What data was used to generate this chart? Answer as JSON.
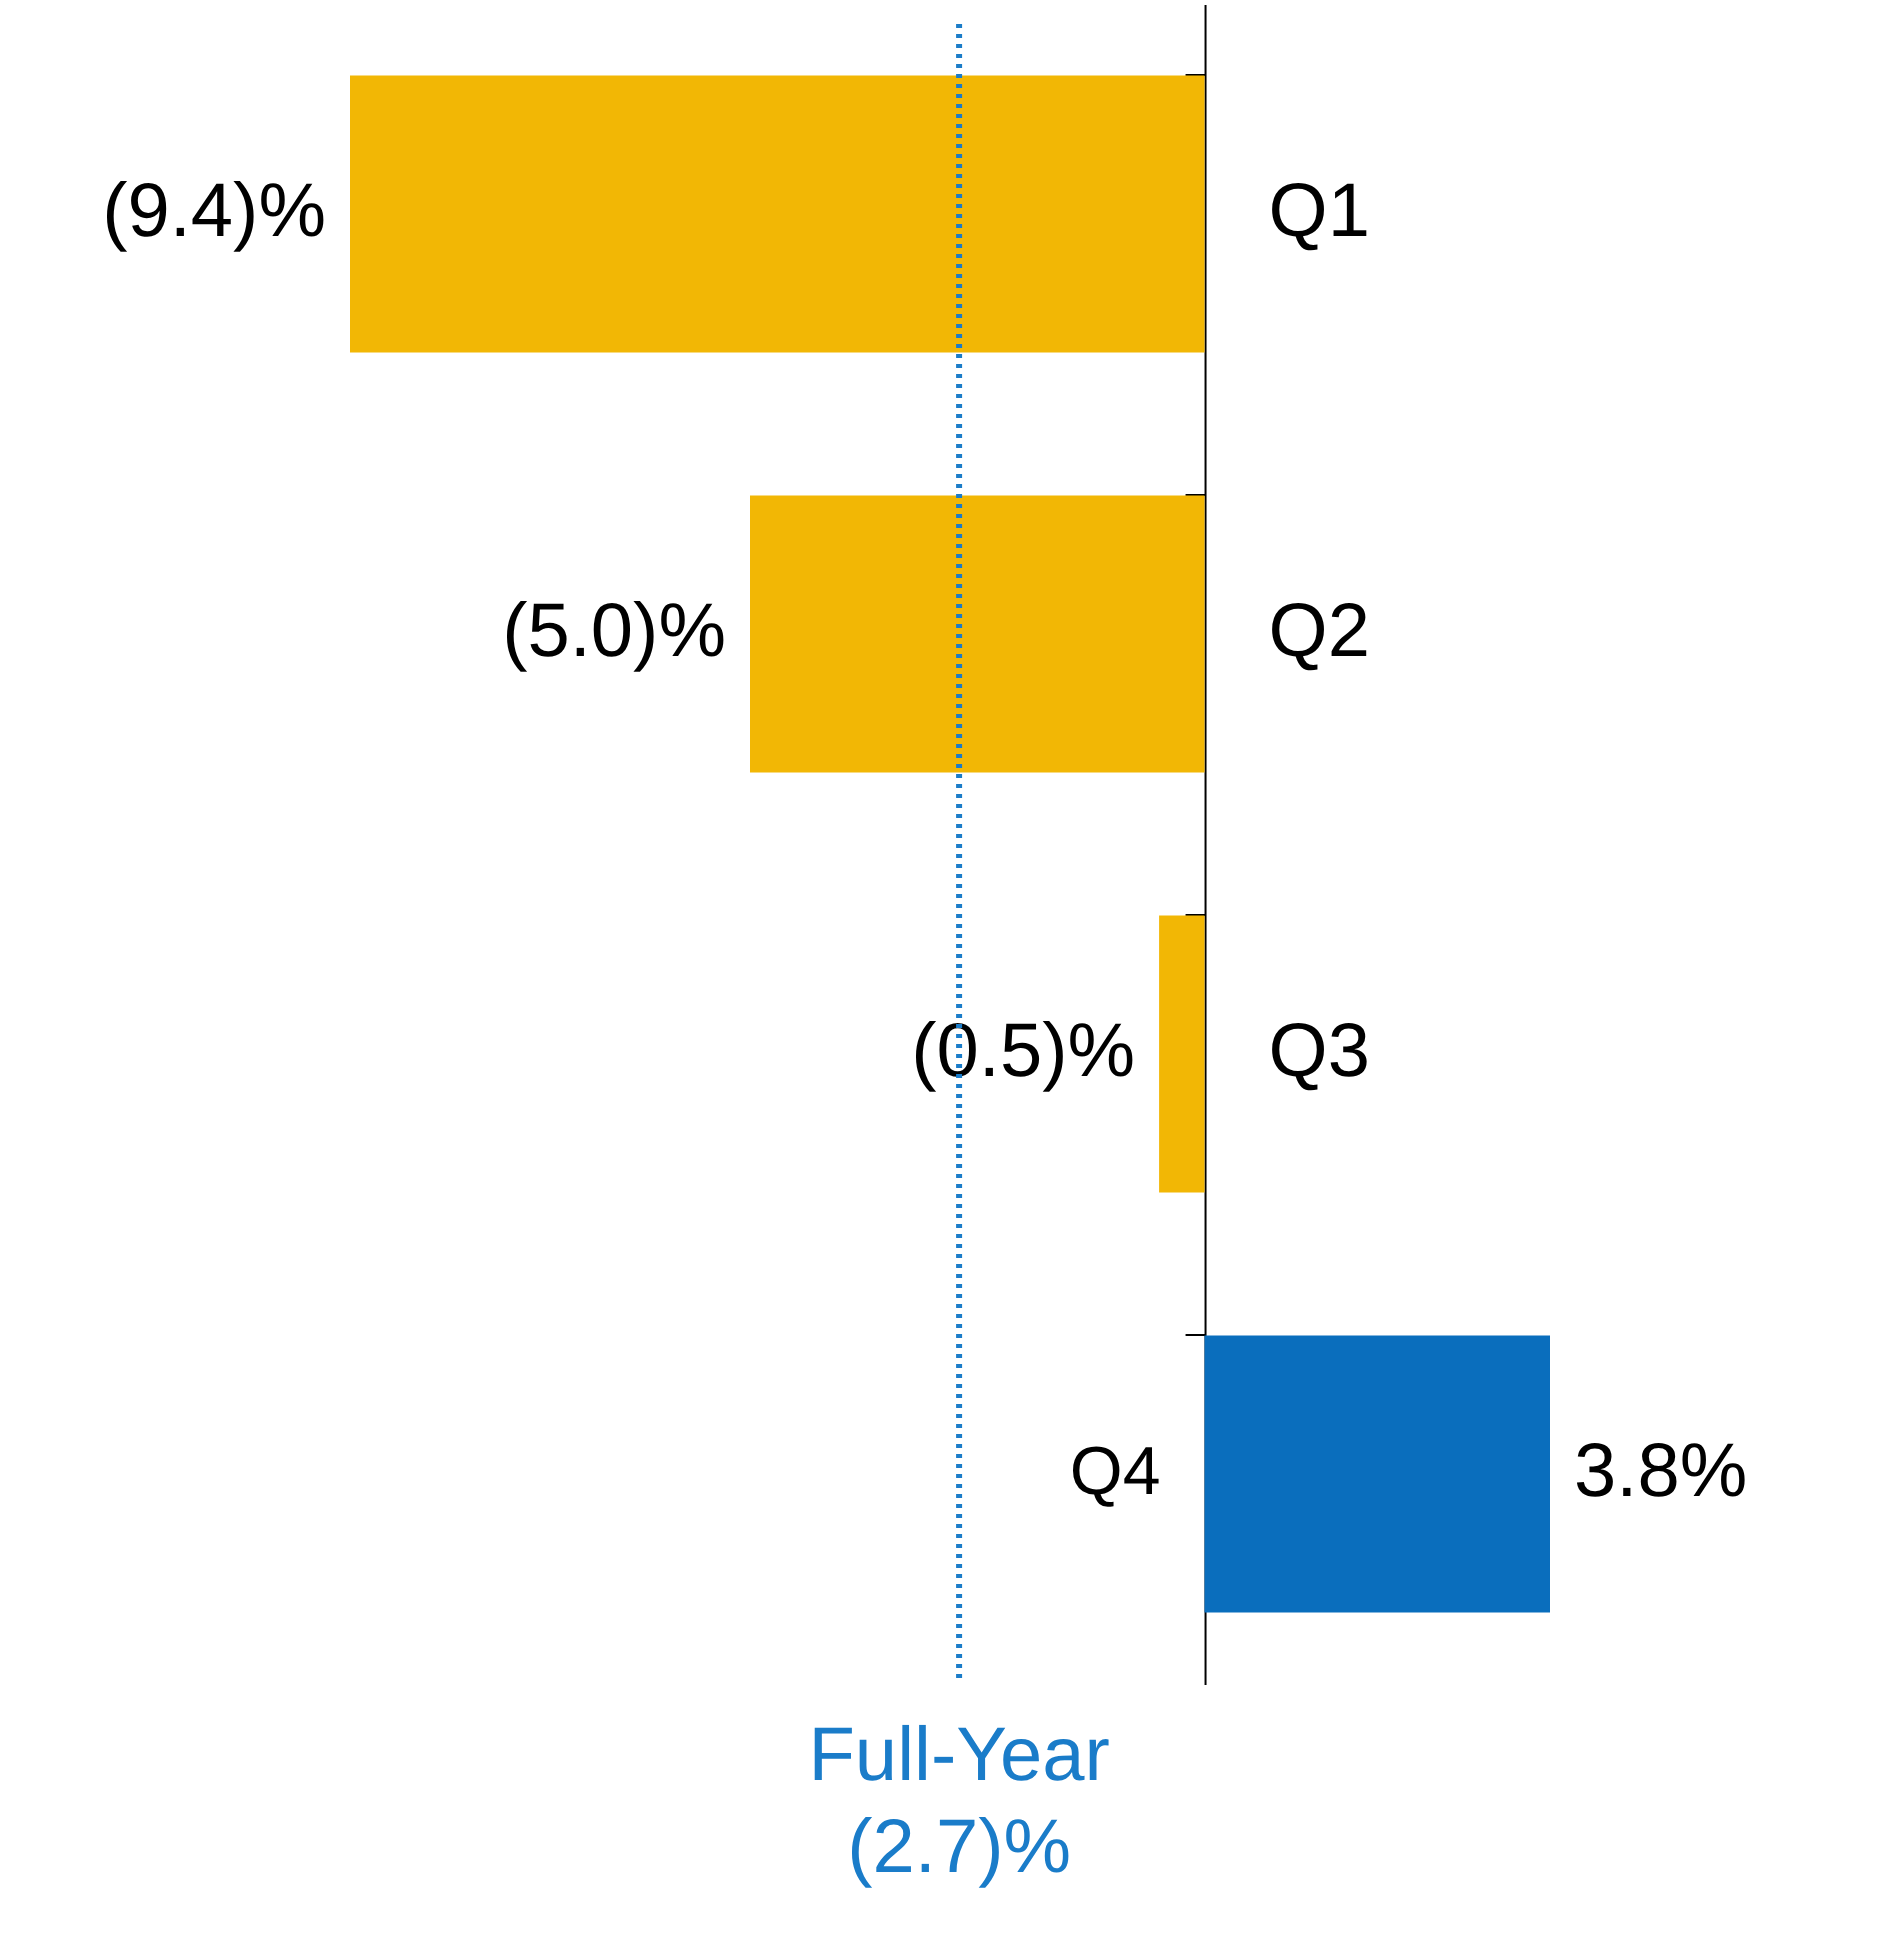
{
  "chart_data": {
    "type": "bar",
    "orientation": "horizontal",
    "categories": [
      "Q1",
      "Q2",
      "Q3",
      "Q4"
    ],
    "values": [
      -9.4,
      -5.0,
      -0.5,
      3.8
    ],
    "colors": [
      "#f2b705",
      "#f2b705",
      "#f2b705",
      "#0a6ebd"
    ],
    "value_labels": [
      "(9.4)%",
      "(5.0)%",
      "(0.5)%",
      "3.8%"
    ],
    "ref_lines": [
      {
        "axis": "x",
        "value": -2.7,
        "label": "Full-Year\n(2.7)%",
        "color": "#1a7cc9",
        "line_style": "dotted"
      }
    ],
    "tick_labels": "y"
  }
}
